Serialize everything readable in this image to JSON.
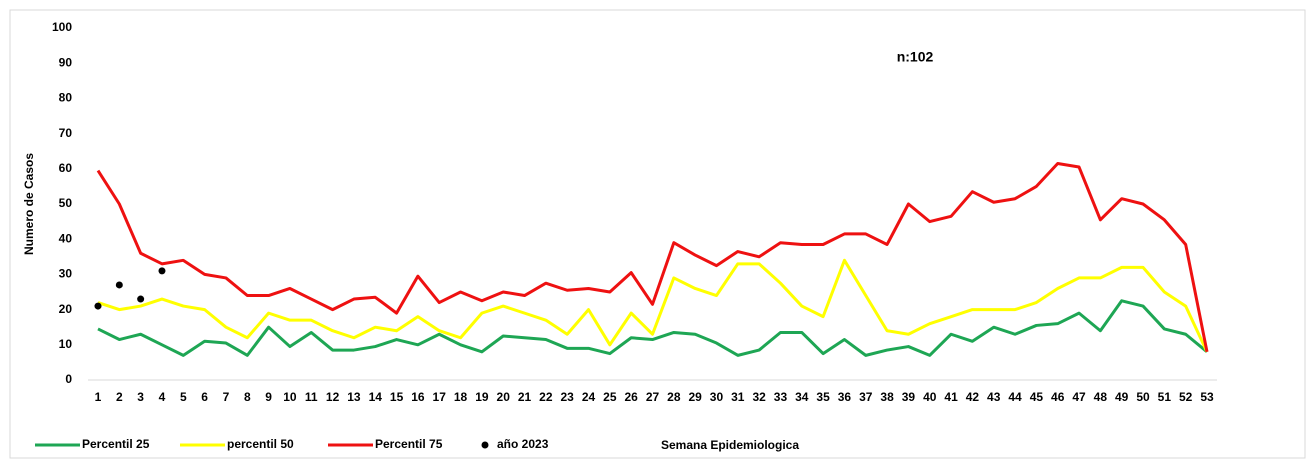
{
  "chart_data": {
    "type": "line",
    "annotation": "n:102",
    "x_label": "Semana Epidemiologica",
    "y_label": "Numero de Casos",
    "categories": [
      "1",
      "2",
      "3",
      "4",
      "5",
      "6",
      "7",
      "8",
      "9",
      "10",
      "11",
      "12",
      "13",
      "14",
      "15",
      "16",
      "17",
      "18",
      "19",
      "20",
      "21",
      "22",
      "23",
      "24",
      "25",
      "26",
      "27",
      "28",
      "29",
      "30",
      "31",
      "32",
      "33",
      "34",
      "35",
      "36",
      "37",
      "38",
      "39",
      "40",
      "41",
      "42",
      "43",
      "44",
      "45",
      "46",
      "47",
      "48",
      "49",
      "50",
      "51",
      "52",
      "53"
    ],
    "ylim": [
      0,
      100
    ],
    "yticks": [
      0,
      10,
      20,
      30,
      40,
      50,
      60,
      70,
      80,
      90,
      100
    ],
    "grid": false,
    "series": [
      {
        "name": "Percentil 25",
        "color": "#1ea654",
        "type": "line",
        "values": [
          14.5,
          11.5,
          13,
          10,
          7,
          11,
          10.5,
          7,
          15,
          9.5,
          13.5,
          8.5,
          8.5,
          9.5,
          11.5,
          10,
          13,
          10,
          8,
          12.5,
          12,
          11.5,
          9,
          9,
          7.5,
          12,
          11.5,
          13.5,
          13,
          10.5,
          7,
          8.5,
          13.5,
          13.5,
          7.5,
          11.5,
          7,
          8.5,
          9.5,
          7,
          13,
          11,
          15,
          13,
          15.5,
          16,
          19,
          14,
          22.5,
          21,
          14.5,
          13,
          8
        ]
      },
      {
        "name": "percentil 50",
        "color": "#ffff00",
        "type": "line",
        "values": [
          22,
          20,
          21,
          23,
          21,
          20,
          15,
          12,
          19,
          17,
          17,
          14,
          12,
          15,
          14,
          18,
          14,
          12,
          19,
          21,
          19,
          17,
          13,
          20,
          10,
          19,
          13,
          29,
          26,
          24,
          33,
          33,
          27.5,
          21,
          18,
          34,
          24,
          14,
          13,
          16,
          18,
          20,
          20,
          20,
          22,
          26,
          29,
          29,
          32,
          32,
          25,
          21,
          8
        ]
      },
      {
        "name": "Percentil 75",
        "color": "#ee1111",
        "type": "line",
        "values": [
          59.5,
          50,
          36,
          33,
          34,
          30,
          29,
          24,
          24,
          26,
          23,
          20,
          23,
          23.5,
          19,
          29.5,
          22,
          25,
          22.5,
          25,
          24,
          27.5,
          25.5,
          26,
          25,
          30.5,
          21.5,
          39,
          35.5,
          32.5,
          36.5,
          35,
          39,
          38.5,
          38.5,
          41.5,
          41.5,
          38.5,
          50,
          45,
          46.5,
          53.5,
          50.5,
          51.5,
          55,
          61.5,
          60.5,
          45.5,
          51.5,
          50,
          45.5,
          38.5,
          8
        ]
      },
      {
        "name": "año 2023",
        "color": "#000000",
        "type": "scatter",
        "values": [
          21,
          27,
          23,
          31,
          null,
          null,
          null,
          null,
          null,
          null,
          null,
          null,
          null,
          null,
          null,
          null,
          null,
          null,
          null,
          null,
          null,
          null,
          null,
          null,
          null,
          null,
          null,
          null,
          null,
          null,
          null,
          null,
          null,
          null,
          null,
          null,
          null,
          null,
          null,
          null,
          null,
          null,
          null,
          null,
          null,
          null,
          null,
          null,
          null,
          null,
          null,
          null,
          null
        ]
      }
    ]
  }
}
